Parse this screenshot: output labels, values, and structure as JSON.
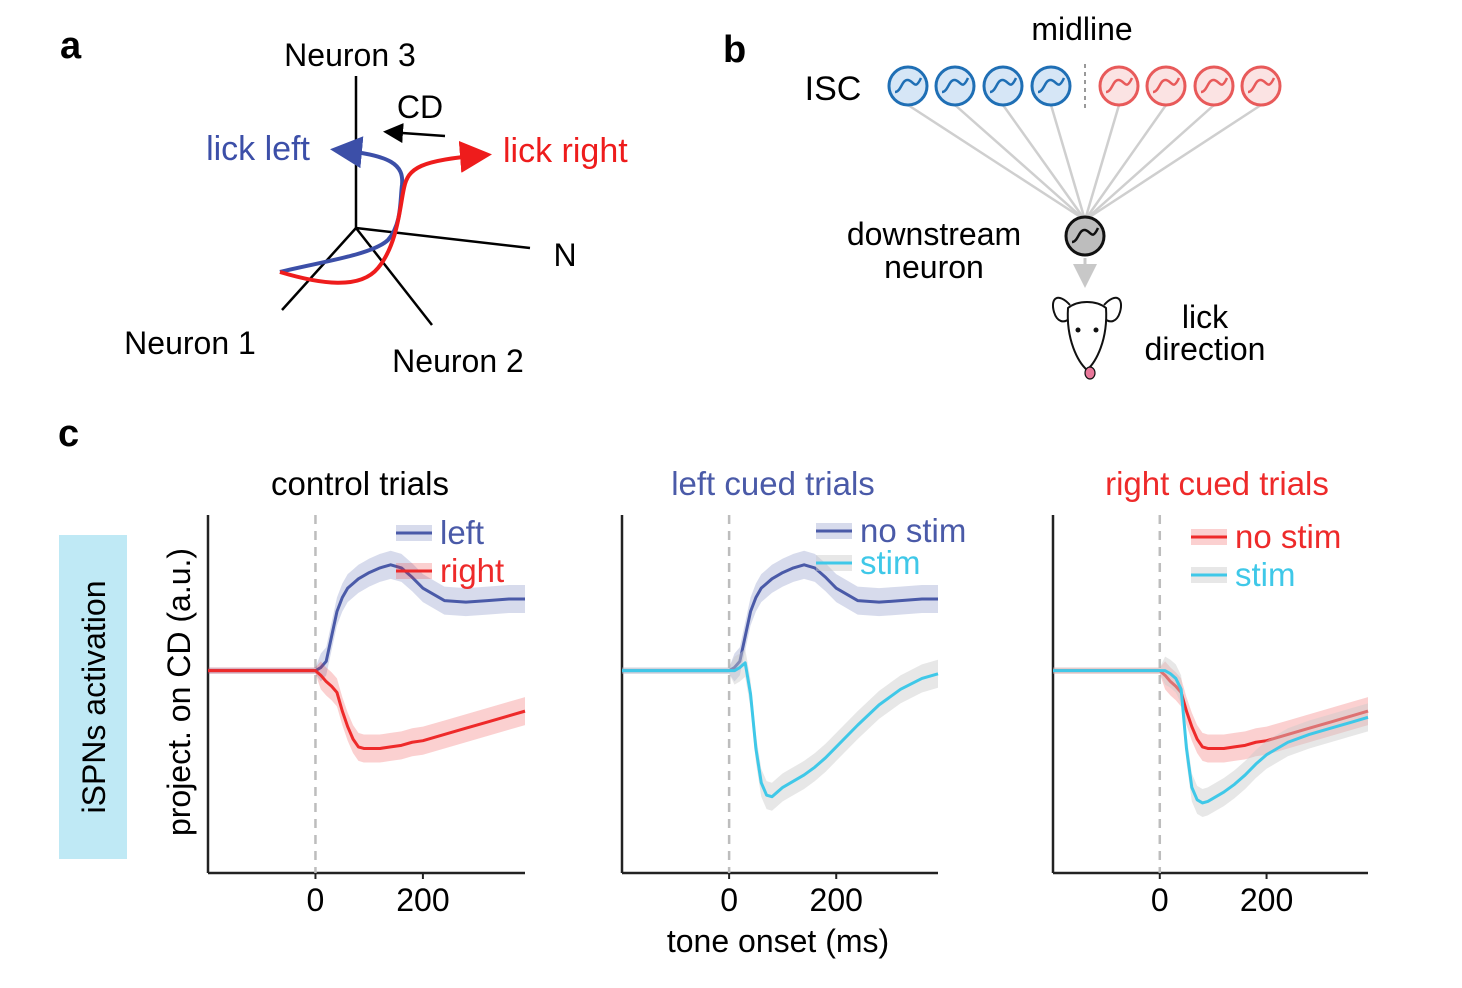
{
  "panels": {
    "a": {
      "label": "a",
      "neuron1": "Neuron 1",
      "neuron2": "Neuron 2",
      "neuron3": "Neuron 3",
      "n_axis": "N",
      "cd": "CD",
      "lick_left": "lick left",
      "lick_right": "lick right"
    },
    "b": {
      "label": "b",
      "midline": "midline",
      "isc": "ISC",
      "downstream_line1": "downstream",
      "downstream_line2": "neuron",
      "lick_line1": "lick",
      "lick_line2": "direction"
    },
    "c": {
      "label": "c",
      "side_label": "iSPNs activation",
      "ylabel": "project. on CD (a.u.)",
      "xlabel": "tone onset (ms)"
    }
  },
  "colors": {
    "left": "#4a5aa8",
    "right": "#ee2a2a",
    "stim": "#3fc8e8",
    "blue_unit": "#1f6fb5",
    "red_unit": "#e85a5a",
    "side_box": "#bfe9f5"
  },
  "chart_data": [
    {
      "type": "line",
      "title": "control trials",
      "title_color": "#000000",
      "x": [
        -200,
        -150,
        -100,
        -50,
        0,
        10,
        20,
        30,
        40,
        50,
        60,
        70,
        80,
        90,
        100,
        120,
        140,
        160,
        180,
        200,
        240,
        280,
        320,
        360,
        390
      ],
      "xticks": [
        0,
        200
      ],
      "xlim": [
        -200,
        390
      ],
      "ylim": [
        -1.3,
        1.0
      ],
      "series": [
        {
          "name": "left",
          "color": "#4a5aa8",
          "values": [
            0,
            0,
            0,
            0,
            0,
            0.02,
            0.06,
            0.22,
            0.38,
            0.47,
            0.53,
            0.56,
            0.59,
            0.61,
            0.63,
            0.66,
            0.68,
            0.66,
            0.6,
            0.53,
            0.45,
            0.44,
            0.45,
            0.46,
            0.46
          ]
        },
        {
          "name": "right",
          "color": "#ee2a2a",
          "values": [
            0,
            0,
            0,
            0,
            0,
            -0.03,
            -0.07,
            -0.1,
            -0.14,
            -0.26,
            -0.36,
            -0.44,
            -0.49,
            -0.5,
            -0.5,
            -0.5,
            -0.49,
            -0.48,
            -0.46,
            -0.45,
            -0.41,
            -0.37,
            -0.33,
            -0.29,
            -0.26
          ]
        }
      ]
    },
    {
      "type": "line",
      "title": "left cued trials",
      "title_color": "#4a5aa8",
      "x": [
        -200,
        -150,
        -100,
        -50,
        0,
        10,
        20,
        30,
        40,
        50,
        60,
        70,
        80,
        90,
        100,
        120,
        140,
        160,
        180,
        200,
        240,
        280,
        320,
        360,
        390
      ],
      "xticks": [
        0,
        200
      ],
      "xlim": [
        -200,
        390
      ],
      "ylim": [
        -1.3,
        1.0
      ],
      "series": [
        {
          "name": "no stim",
          "color": "#4a5aa8",
          "values": [
            0,
            0,
            0,
            0,
            0,
            0.02,
            0.06,
            0.22,
            0.38,
            0.47,
            0.53,
            0.56,
            0.59,
            0.61,
            0.63,
            0.66,
            0.68,
            0.66,
            0.6,
            0.53,
            0.45,
            0.44,
            0.45,
            0.46,
            0.46
          ]
        },
        {
          "name": "stim",
          "color": "#3fc8e8",
          "values": [
            0,
            0,
            0,
            0,
            0,
            0,
            0.02,
            0.05,
            -0.15,
            -0.5,
            -0.72,
            -0.8,
            -0.81,
            -0.78,
            -0.75,
            -0.71,
            -0.67,
            -0.62,
            -0.56,
            -0.49,
            -0.35,
            -0.22,
            -0.12,
            -0.05,
            -0.02
          ]
        }
      ]
    },
    {
      "type": "line",
      "title": "right cued trials",
      "title_color": "#ee2a2a",
      "x": [
        -200,
        -150,
        -100,
        -50,
        0,
        10,
        20,
        30,
        40,
        50,
        60,
        70,
        80,
        90,
        100,
        120,
        140,
        160,
        180,
        200,
        240,
        280,
        320,
        360,
        390
      ],
      "xticks": [
        0,
        200
      ],
      "xlim": [
        -200,
        390
      ],
      "ylim": [
        -1.3,
        1.0
      ],
      "series": [
        {
          "name": "no stim",
          "color": "#ee2a2a",
          "values": [
            0,
            0,
            0,
            0,
            0,
            -0.03,
            -0.07,
            -0.1,
            -0.14,
            -0.26,
            -0.36,
            -0.44,
            -0.49,
            -0.5,
            -0.5,
            -0.5,
            -0.49,
            -0.48,
            -0.46,
            -0.45,
            -0.41,
            -0.37,
            -0.33,
            -0.29,
            -0.26
          ]
        },
        {
          "name": "stim",
          "color": "#3fc8e8",
          "values": [
            0,
            0,
            0,
            0,
            0,
            0,
            -0.02,
            -0.05,
            -0.12,
            -0.5,
            -0.75,
            -0.83,
            -0.85,
            -0.84,
            -0.82,
            -0.78,
            -0.73,
            -0.67,
            -0.6,
            -0.54,
            -0.46,
            -0.41,
            -0.37,
            -0.33,
            -0.3
          ]
        }
      ]
    }
  ]
}
